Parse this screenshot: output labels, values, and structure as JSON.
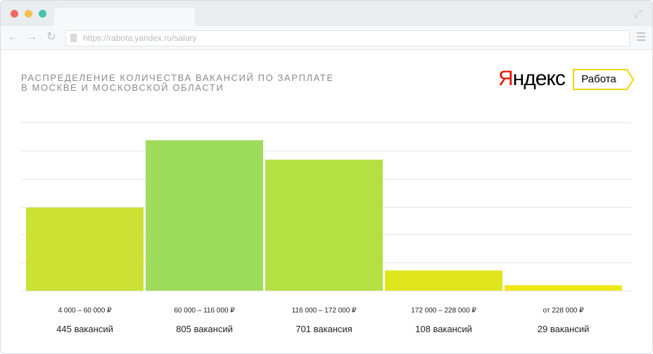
{
  "browser": {
    "url": "https://rabota.yandex.ru/salary",
    "icons": [
      "back-arrow-icon",
      "forward-arrow-icon",
      "reload-icon",
      "page-icon",
      "expand-icon",
      "menu-icon"
    ]
  },
  "header": {
    "title_line1": "Распределение количества вакансий по зарплате",
    "title_line2": "в Москве и Московской области",
    "logo_first": "Я",
    "logo_rest": "ндекс",
    "badge": "Работа"
  },
  "colors": {
    "logo_red": "#e61400",
    "badge_border": "#f5d400",
    "grid": "#e6e6e6"
  },
  "chart_data": {
    "type": "bar",
    "title": "Распределение количества вакансий по зарплате в Москве и Московской области",
    "categories": [
      "4 000 – 60 000 ₽",
      "60 000 – 116 000 ₽",
      "116 000 – 172 000 ₽",
      "172 000 – 228 000 ₽",
      "от 228 000 ₽"
    ],
    "values": [
      445,
      805,
      701,
      108,
      29
    ],
    "value_labels": [
      "445 вакансий",
      "805 вакансий",
      "701 вакансия",
      "108 вакансий",
      "29 вакансий"
    ],
    "colors": [
      "#cbe234",
      "#9edd5c",
      "#b5e044",
      "#dfe51c",
      "#f0e812"
    ],
    "ylim": [
      0,
      900
    ],
    "grid": true,
    "legend": "none"
  }
}
